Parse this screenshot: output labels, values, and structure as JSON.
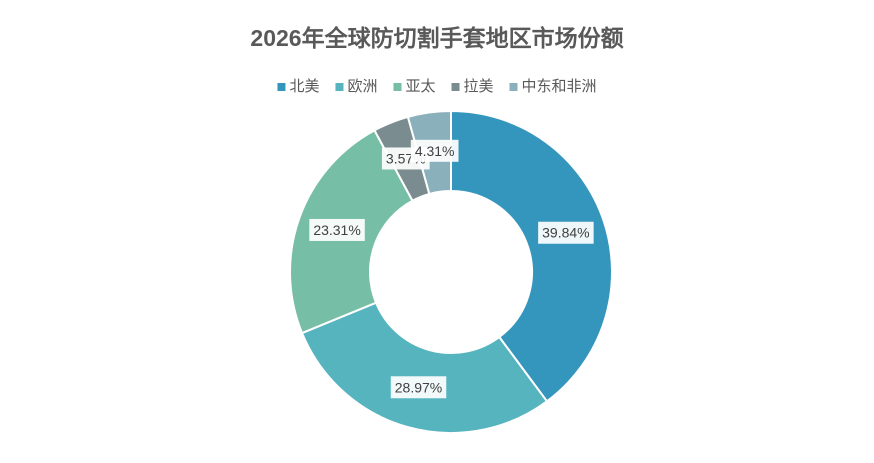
{
  "chart_data": {
    "type": "donut",
    "title": "2026年全球防切割手套地区市场份额",
    "categories": [
      "北美",
      "欧洲",
      "亚太",
      "拉美",
      "中东和非洲"
    ],
    "values": [
      39.84,
      28.97,
      23.31,
      3.57,
      4.31
    ],
    "value_labels": [
      "39.84%",
      "28.97%",
      "23.31%",
      "3.57%",
      "4.31%"
    ],
    "colors": [
      "#3596bd",
      "#56b4bf",
      "#76bfa6",
      "#7a8c8f",
      "#8ab0bb"
    ],
    "legend": "top"
  }
}
